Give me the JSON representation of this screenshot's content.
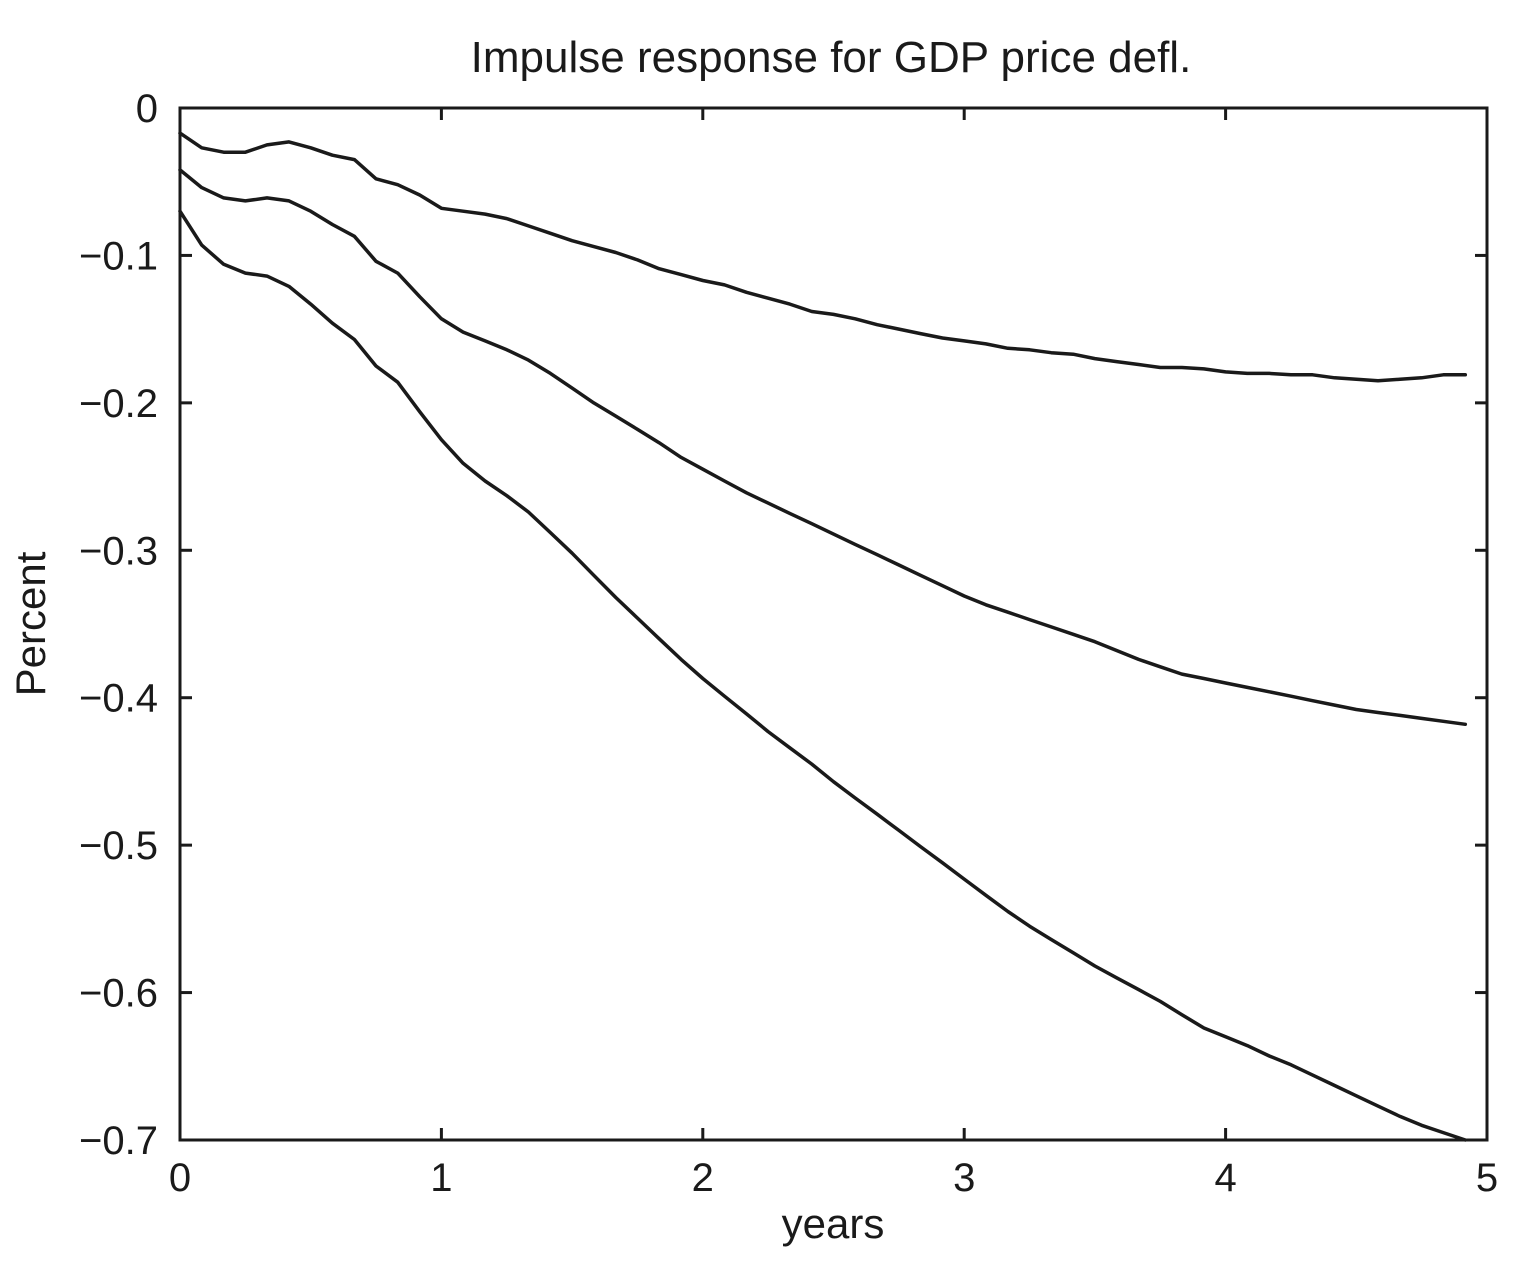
{
  "chart_data": {
    "type": "line",
    "title": "Impulse response for GDP price defl.",
    "xlabel": "years",
    "ylabel": "Percent",
    "xlim": [
      0,
      5
    ],
    "ylim": [
      -0.7,
      0
    ],
    "grid": false,
    "x_ticks": [
      0,
      1,
      2,
      3,
      4,
      5
    ],
    "y_ticks": [
      0,
      -0.1,
      -0.2,
      -0.3,
      -0.4,
      -0.5,
      -0.6,
      -0.7
    ],
    "x_tick_labels": [
      "0",
      "1",
      "2",
      "3",
      "4",
      "5"
    ],
    "y_tick_labels": [
      "0",
      "−0.1",
      "−0.2",
      "−0.3",
      "−0.4",
      "−0.5",
      "−0.6",
      "−0.7"
    ],
    "x": [
      0,
      0.083,
      0.167,
      0.25,
      0.333,
      0.417,
      0.5,
      0.583,
      0.667,
      0.75,
      0.833,
      0.917,
      1.0,
      1.083,
      1.167,
      1.25,
      1.333,
      1.417,
      1.5,
      1.583,
      1.667,
      1.75,
      1.833,
      1.917,
      2.0,
      2.083,
      2.167,
      2.25,
      2.333,
      2.417,
      2.5,
      2.583,
      2.667,
      2.75,
      2.833,
      2.917,
      3.0,
      3.083,
      3.167,
      3.25,
      3.333,
      3.417,
      3.5,
      3.583,
      3.667,
      3.75,
      3.833,
      3.917,
      4.0,
      4.083,
      4.167,
      4.25,
      4.333,
      4.417,
      4.5,
      4.583,
      4.667,
      4.75,
      4.833,
      4.917
    ],
    "series": [
      {
        "values": [
          -0.017,
          -0.027,
          -0.03,
          -0.03,
          -0.025,
          -0.023,
          -0.027,
          -0.032,
          -0.035,
          -0.048,
          -0.052,
          -0.059,
          -0.068,
          -0.07,
          -0.072,
          -0.075,
          -0.08,
          -0.085,
          -0.09,
          -0.094,
          -0.098,
          -0.103,
          -0.109,
          -0.113,
          -0.117,
          -0.12,
          -0.125,
          -0.129,
          -0.133,
          -0.138,
          -0.14,
          -0.143,
          -0.147,
          -0.15,
          -0.153,
          -0.156,
          -0.158,
          -0.16,
          -0.163,
          -0.164,
          -0.166,
          -0.167,
          -0.17,
          -0.172,
          -0.174,
          -0.176,
          -0.176,
          -0.177,
          -0.179,
          -0.18,
          -0.18,
          -0.181,
          -0.181,
          -0.183,
          -0.184,
          -0.185,
          -0.184,
          -0.183,
          -0.181,
          -0.181
        ]
      },
      {
        "values": [
          -0.042,
          -0.054,
          -0.061,
          -0.063,
          -0.061,
          -0.063,
          -0.07,
          -0.079,
          -0.087,
          -0.104,
          -0.112,
          -0.128,
          -0.143,
          -0.152,
          -0.158,
          -0.164,
          -0.171,
          -0.18,
          -0.19,
          -0.2,
          -0.209,
          -0.218,
          -0.227,
          -0.237,
          -0.245,
          -0.253,
          -0.261,
          -0.268,
          -0.275,
          -0.282,
          -0.289,
          -0.296,
          -0.303,
          -0.31,
          -0.317,
          -0.324,
          -0.331,
          -0.337,
          -0.342,
          -0.347,
          -0.352,
          -0.357,
          -0.362,
          -0.368,
          -0.374,
          -0.379,
          -0.384,
          -0.387,
          -0.39,
          -0.393,
          -0.396,
          -0.399,
          -0.402,
          -0.405,
          -0.408,
          -0.41,
          -0.412,
          -0.414,
          -0.416,
          -0.418
        ]
      },
      {
        "values": [
          -0.07,
          -0.093,
          -0.106,
          -0.112,
          -0.114,
          -0.121,
          -0.133,
          -0.146,
          -0.157,
          -0.175,
          -0.186,
          -0.206,
          -0.225,
          -0.241,
          -0.253,
          -0.263,
          -0.274,
          -0.288,
          -0.302,
          -0.317,
          -0.332,
          -0.346,
          -0.36,
          -0.374,
          -0.387,
          -0.399,
          -0.411,
          -0.423,
          -0.434,
          -0.445,
          -0.457,
          -0.468,
          -0.479,
          -0.49,
          -0.501,
          -0.512,
          -0.523,
          -0.534,
          -0.545,
          -0.555,
          -0.564,
          -0.573,
          -0.582,
          -0.59,
          -0.598,
          -0.606,
          -0.615,
          -0.624,
          -0.63,
          -0.636,
          -0.643,
          -0.649,
          -0.656,
          -0.663,
          -0.67,
          -0.677,
          -0.684,
          -0.69,
          -0.695,
          -0.7
        ]
      }
    ]
  }
}
